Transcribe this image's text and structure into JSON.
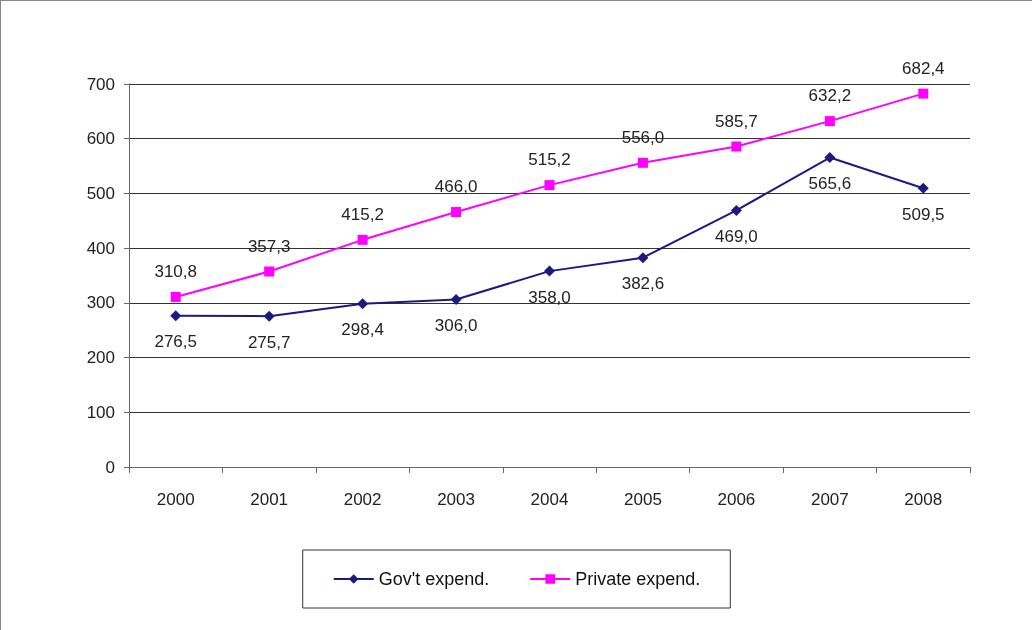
{
  "chart_data": {
    "type": "line",
    "categories": [
      "2000",
      "2001",
      "2002",
      "2003",
      "2004",
      "2005",
      "2006",
      "2007",
      "2008"
    ],
    "series": [
      {
        "name": "Gov't expend.",
        "color": "#1c1a7f",
        "marker": "diamond",
        "values": [
          276.5,
          275.7,
          298.4,
          306.0,
          358.0,
          382.6,
          469.0,
          565.6,
          509.5
        ],
        "value_labels": [
          "276,5",
          "275,7",
          "298,4",
          "306,0",
          "358,0",
          "382,6",
          "469,0",
          "565,6",
          "509,5"
        ]
      },
      {
        "name": "Private expend.",
        "color": "#ff00ff",
        "marker": "square",
        "values": [
          310.8,
          357.3,
          415.2,
          466.0,
          515.2,
          556.0,
          585.7,
          632.2,
          682.4
        ],
        "value_labels": [
          "310,8",
          "357,3",
          "415,2",
          "466,0",
          "515,2",
          "556,0",
          "585,7",
          "632,2",
          "682,4"
        ]
      }
    ],
    "ylim": [
      0,
      700
    ],
    "yticks": [
      0,
      100,
      200,
      300,
      400,
      500,
      600,
      700
    ],
    "grid": "y",
    "legend": "bottom",
    "line_style": "solid"
  }
}
